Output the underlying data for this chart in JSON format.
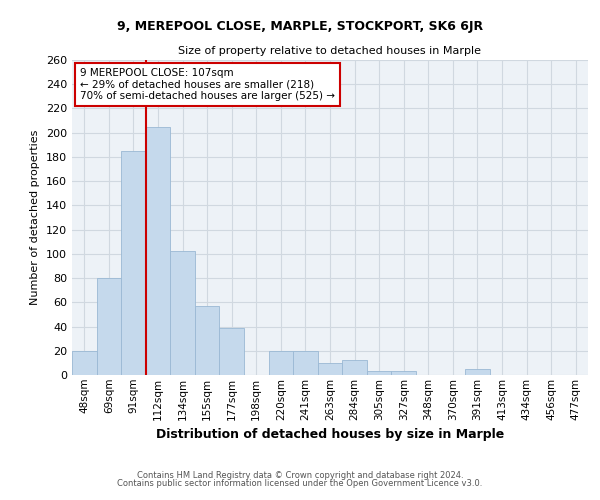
{
  "title1": "9, MEREPOOL CLOSE, MARPLE, STOCKPORT, SK6 6JR",
  "title2": "Size of property relative to detached houses in Marple",
  "xlabel": "Distribution of detached houses by size in Marple",
  "ylabel": "Number of detached properties",
  "annotation_line1": "9 MEREPOOL CLOSE: 107sqm",
  "annotation_line2": "← 29% of detached houses are smaller (218)",
  "annotation_line3": "70% of semi-detached houses are larger (525) →",
  "footer1": "Contains HM Land Registry data © Crown copyright and database right 2024.",
  "footer2": "Contains public sector information licensed under the Open Government Licence v3.0.",
  "bar_labels": [
    "48sqm",
    "69sqm",
    "91sqm",
    "112sqm",
    "134sqm",
    "155sqm",
    "177sqm",
    "198sqm",
    "220sqm",
    "241sqm",
    "263sqm",
    "284sqm",
    "305sqm",
    "327sqm",
    "348sqm",
    "370sqm",
    "391sqm",
    "413sqm",
    "434sqm",
    "456sqm",
    "477sqm"
  ],
  "bar_values": [
    20,
    80,
    185,
    205,
    102,
    57,
    39,
    0,
    20,
    20,
    10,
    12,
    3,
    3,
    0,
    0,
    5,
    0,
    0,
    0,
    0
  ],
  "bar_color": "#c5d9ec",
  "bar_edge_color": "#9ab8d4",
  "vline_color": "#cc0000",
  "annotation_box_color": "#cc0000",
  "ylim": [
    0,
    260
  ],
  "yticks": [
    0,
    20,
    40,
    60,
    80,
    100,
    120,
    140,
    160,
    180,
    200,
    220,
    240,
    260
  ],
  "grid_color": "#d0d8e0",
  "bg_color": "#edf2f7"
}
